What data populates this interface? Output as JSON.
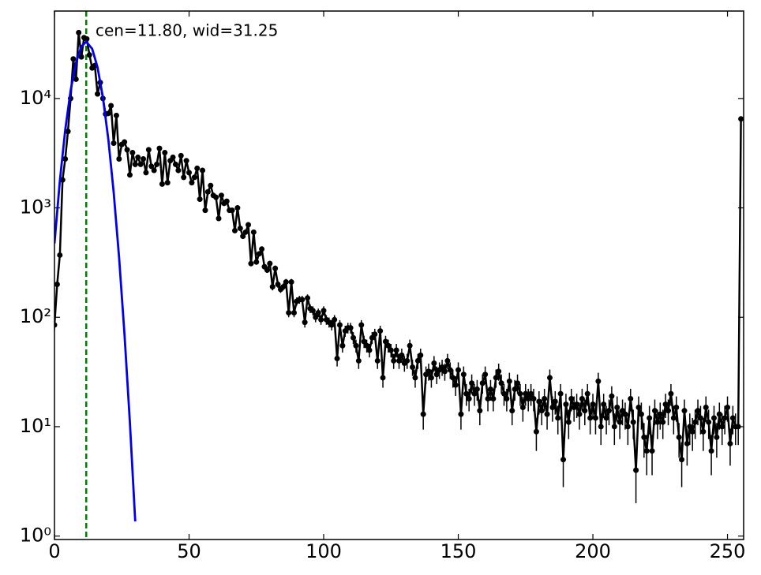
{
  "chart_data": {
    "type": "line",
    "log_y": true,
    "annotation": "cen=11.80, wid=31.25",
    "vline": {
      "x": 11.8,
      "color": "#008000"
    },
    "xlim": [
      0,
      256
    ],
    "ylim": [
      0.93,
      63000
    ],
    "xticks": [
      0,
      50,
      100,
      150,
      200,
      250
    ],
    "yticks": [
      {
        "value": 1,
        "label": "10⁰"
      },
      {
        "value": 10,
        "label": "10¹"
      },
      {
        "value": 100,
        "label": "10²"
      },
      {
        "value": 1000,
        "label": "10³"
      },
      {
        "value": 10000,
        "label": "10⁴"
      }
    ],
    "series": [
      {
        "color": "#000000",
        "x": [
          0,
          1,
          2,
          3,
          4,
          5,
          6,
          7,
          8,
          9,
          10,
          11,
          12,
          13,
          14,
          15,
          16,
          17,
          18,
          19,
          20,
          21,
          22,
          23,
          24,
          25,
          26,
          27,
          28,
          29,
          30,
          31,
          32,
          33,
          34,
          35,
          36,
          37,
          38,
          39,
          40,
          41,
          42,
          43,
          44,
          45,
          46,
          47,
          48,
          49,
          50,
          51,
          52,
          53,
          54,
          55,
          56,
          57,
          58,
          59,
          60,
          61,
          62,
          63,
          64,
          65,
          66,
          67,
          68,
          69,
          70,
          71,
          72,
          73,
          74,
          75,
          76,
          77,
          78,
          79,
          80,
          81,
          82,
          83,
          84,
          85,
          86,
          87,
          88,
          89,
          90,
          91,
          92,
          93,
          94,
          95,
          96,
          97,
          98,
          99,
          100,
          101,
          102,
          103,
          104,
          105,
          106,
          107,
          108,
          109,
          110,
          111,
          112,
          113,
          114,
          115,
          116,
          117,
          118,
          119,
          120,
          121,
          122,
          123,
          124,
          125,
          126,
          127,
          128,
          129,
          130,
          131,
          132,
          133,
          134,
          135,
          136,
          137,
          138,
          139,
          140,
          141,
          142,
          143,
          144,
          145,
          146,
          147,
          148,
          149,
          150,
          151,
          152,
          153,
          154,
          155,
          156,
          157,
          158,
          159,
          160,
          161,
          162,
          163,
          164,
          165,
          166,
          167,
          168,
          169,
          170,
          171,
          172,
          173,
          174,
          175,
          176,
          177,
          178,
          179,
          180,
          181,
          182,
          183,
          184,
          185,
          186,
          187,
          188,
          189,
          190,
          191,
          192,
          193,
          194,
          195,
          196,
          197,
          198,
          199,
          200,
          201,
          202,
          203,
          204,
          205,
          206,
          207,
          208,
          209,
          210,
          211,
          212,
          213,
          214,
          215,
          216,
          217,
          218,
          219,
          220,
          221,
          222,
          223,
          224,
          225,
          226,
          227,
          228,
          229,
          230,
          231,
          232,
          233,
          234,
          235,
          236,
          237,
          238,
          239,
          240,
          241,
          242,
          243,
          244,
          245,
          246,
          247,
          248,
          249,
          250,
          251,
          252,
          253,
          254,
          255
        ],
        "values": [
          85,
          200,
          370,
          1800,
          2800,
          5000,
          10000,
          23000,
          15000,
          40000,
          24000,
          36000,
          35000,
          25000,
          19000,
          20000,
          11000,
          14000,
          10000,
          7200,
          7300,
          8600,
          3900,
          7000,
          2800,
          3800,
          4000,
          3400,
          2000,
          3200,
          2500,
          2900,
          2500,
          2800,
          2100,
          3400,
          2400,
          2200,
          2500,
          3500,
          1650,
          3200,
          1700,
          2700,
          2900,
          2500,
          2200,
          3000,
          1900,
          2700,
          2100,
          1700,
          1900,
          2300,
          1200,
          2200,
          950,
          1400,
          1600,
          1300,
          1250,
          800,
          1300,
          1100,
          1150,
          950,
          950,
          620,
          1000,
          650,
          550,
          600,
          700,
          310,
          600,
          320,
          380,
          420,
          290,
          270,
          310,
          190,
          280,
          200,
          180,
          190,
          210,
          110,
          210,
          110,
          140,
          145,
          145,
          90,
          150,
          120,
          115,
          100,
          110,
          95,
          115,
          95,
          90,
          85,
          95,
          42,
          85,
          55,
          75,
          80,
          80,
          65,
          55,
          40,
          85,
          60,
          55,
          50,
          65,
          70,
          40,
          75,
          28,
          60,
          55,
          50,
          40,
          50,
          40,
          45,
          38,
          40,
          55,
          35,
          28,
          40,
          45,
          13,
          30,
          32,
          28,
          38,
          30,
          33,
          35,
          32,
          40,
          33,
          28,
          24,
          33,
          13,
          30,
          20,
          18,
          25,
          20,
          22,
          14,
          25,
          30,
          18,
          22,
          18,
          28,
          32,
          25,
          20,
          18,
          26,
          14,
          22,
          25,
          20,
          15,
          20,
          18,
          20,
          18,
          9,
          17,
          14,
          18,
          13,
          28,
          15,
          17,
          12,
          20,
          5,
          16,
          11,
          18,
          15,
          16,
          13,
          18,
          14,
          20,
          12,
          16,
          12,
          26,
          10,
          16,
          12,
          14,
          19,
          10,
          15,
          11,
          14,
          13,
          10,
          18,
          11,
          4,
          15,
          13,
          8,
          6,
          12,
          6,
          14,
          11,
          13,
          11,
          16,
          14,
          20,
          12,
          15,
          8,
          5,
          14,
          7,
          10,
          9,
          11,
          14,
          12,
          9,
          15,
          11,
          6,
          12,
          8,
          13,
          10,
          12,
          15,
          7,
          12,
          10,
          10,
          6500
        ],
        "errors": [
          9,
          14,
          19,
          42,
          53,
          71,
          100,
          152,
          122,
          200,
          155,
          190,
          187,
          158,
          138,
          141,
          105,
          118,
          100,
          85,
          85,
          93,
          62,
          84,
          53,
          62,
          63,
          58,
          45,
          57,
          50,
          54,
          50,
          53,
          46,
          58,
          49,
          47,
          50,
          59,
          41,
          57,
          41,
          52,
          54,
          50,
          47,
          55,
          44,
          52,
          46,
          41,
          44,
          48,
          35,
          47,
          31,
          37,
          40,
          36,
          35,
          28,
          36,
          33,
          34,
          31,
          31,
          25,
          32,
          25,
          23,
          24,
          26,
          18,
          24,
          18,
          19,
          20,
          17,
          16,
          18,
          14,
          17,
          14,
          13,
          14,
          14,
          10,
          14,
          10,
          12,
          12,
          12,
          9.5,
          12,
          11,
          11,
          10,
          10,
          9.7,
          11,
          9.7,
          9.5,
          9.2,
          9.7,
          6.5,
          9.2,
          7.4,
          8.7,
          8.9,
          8.9,
          8.1,
          7.4,
          6.3,
          9.2,
          7.7,
          7.4,
          7.1,
          8.1,
          8.4,
          6.3,
          8.7,
          5.3,
          7.7,
          7.4,
          7.1,
          6.3,
          7.1,
          6.3,
          6.7,
          6.2,
          6.3,
          7.4,
          5.9,
          5.3,
          6.3,
          6.7,
          3.6,
          5.5,
          5.7,
          5.3,
          6.2,
          5.5,
          5.7,
          5.9,
          5.7,
          6.3,
          5.7,
          5.3,
          4.9,
          5.7,
          3.6,
          5.5,
          4.5,
          4.2,
          5,
          4.5,
          4.7,
          3.7,
          5,
          5.5,
          4.2,
          4.7,
          4.2,
          5.3,
          5.7,
          5,
          4.5,
          4.2,
          5.1,
          3.7,
          4.7,
          5,
          4.5,
          3.9,
          4.5,
          4.2,
          4.5,
          4.2,
          3,
          4.1,
          3.7,
          4.2,
          3.6,
          5.3,
          3.9,
          4.1,
          3.5,
          4.5,
          2.2,
          4,
          3.3,
          4.2,
          3.9,
          4,
          3.6,
          4.2,
          3.7,
          4.5,
          3.5,
          4,
          3.5,
          5.1,
          3.2,
          4,
          3.5,
          3.7,
          4.4,
          3.2,
          3.9,
          3.3,
          3.7,
          3.6,
          3.2,
          4.2,
          3.3,
          2,
          3.9,
          3.6,
          2.8,
          2.4,
          3.5,
          2.4,
          3.7,
          3.3,
          3.6,
          3.3,
          4,
          3.7,
          4.5,
          3.5,
          3.9,
          2.8,
          2.2,
          3.7,
          2.6,
          3.2,
          3,
          3.3,
          3.7,
          3.5,
          3,
          3.9,
          3.3,
          2.4,
          3.5,
          2.8,
          3.6,
          3.2,
          3.5,
          3.9,
          2.6,
          3.5,
          3.2,
          3.2,
          81
        ]
      },
      {
        "color": "#0000ee",
        "x": [
          0,
          2,
          4,
          6,
          8,
          10,
          11.8,
          14,
          16,
          18,
          20,
          22,
          24,
          26,
          28,
          30
        ],
        "values": [
          473,
          1765,
          5165,
          11830,
          21250,
          29900,
          33000,
          28470,
          19270,
          10220,
          4250,
          1383,
          353,
          70.6,
          11.1,
          1.36
        ]
      }
    ]
  }
}
